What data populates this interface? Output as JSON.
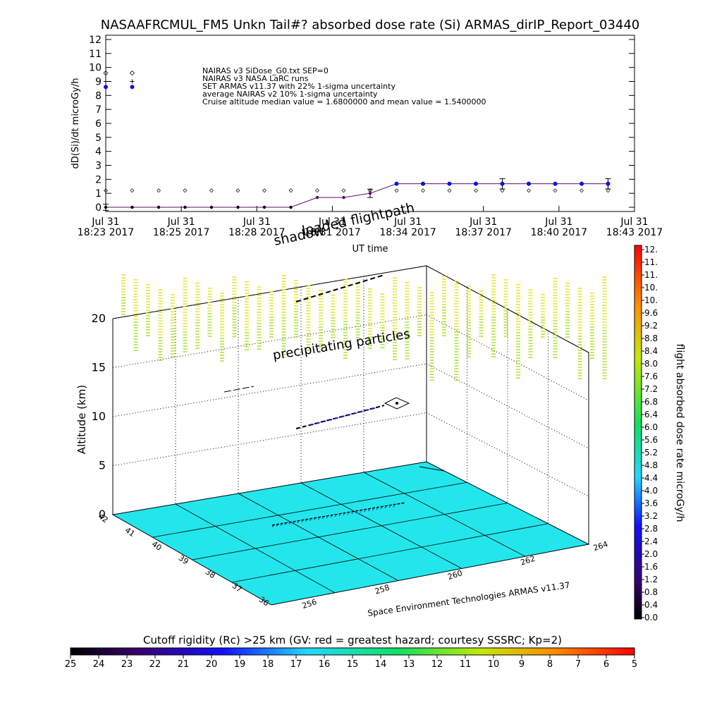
{
  "chart_data": [
    {
      "type": "scatter",
      "title": "NASAAFRCMUL_FM5 Unkn Tail#? absorbed dose rate (Si) ARMAS_dirIP_Report_03440",
      "ylabel": "dD(Si)/dt microGy/h",
      "xlabel": "UT time",
      "ylim": [
        0,
        12
      ],
      "yticks": [
        "0",
        "1",
        "2",
        "3",
        "4",
        "5",
        "6",
        "7",
        "8",
        "9",
        "10",
        "11",
        "12"
      ],
      "xticks": [
        {
          "l1": "Jul 31",
          "l2": "18:23 2017"
        },
        {
          "l1": "Jul 31",
          "l2": "18:25 2017"
        },
        {
          "l1": "Jul 31",
          "l2": "18:28 2017"
        },
        {
          "l1": "Jul 31",
          "l2": "18:31 2017"
        },
        {
          "l1": "Jul 31",
          "l2": "18:34 2017"
        },
        {
          "l1": "Jul 31",
          "l2": "18:37 2017"
        },
        {
          "l1": "Jul 31",
          "l2": "18:40 2017"
        },
        {
          "l1": "Jul 31",
          "l2": "18:43 2017"
        }
      ],
      "xlim_minutes": [
        0,
        20
      ],
      "legend": [
        "NAIRAS v3 SiDose_G0.txt SEP=0",
        "NAIRAS v3 NASA LaRC runs",
        "SET ARMAS v11.37 with 22% 1-sigma uncertainty",
        "average NAIRAS v2 10% 1-sigma uncertainty",
        "Cruise altitude median value = 1.6800000 and mean value = 1.5400000"
      ],
      "legend_placement": "top-left",
      "marker_key": [
        {
          "x": 0,
          "y": 9.6,
          "kind": "diamond"
        },
        {
          "x": 1,
          "y": 9.6,
          "kind": "diamond"
        },
        {
          "x": 0,
          "y": 9.0,
          "kind": "plus"
        },
        {
          "x": 1,
          "y": 9.0,
          "kind": "plus"
        },
        {
          "x": 0,
          "y": 8.6,
          "kind": "dot"
        },
        {
          "x": 1,
          "y": 8.6,
          "kind": "dot"
        }
      ],
      "series": [
        {
          "kind": "armas",
          "x": [
            0,
            1,
            2,
            3,
            4,
            5,
            6,
            7,
            8,
            9,
            10,
            11,
            12,
            13,
            14,
            15,
            16,
            17,
            18,
            19
          ],
          "y": [
            0,
            0,
            0,
            0,
            0,
            0,
            0,
            0,
            0.7,
            0.7,
            1.0,
            1.68,
            1.68,
            1.68,
            1.68,
            1.68,
            1.68,
            1.68,
            1.68,
            1.68
          ],
          "err": [
            0.22,
            0,
            0,
            0,
            0,
            0,
            0,
            0,
            0,
            0,
            0.3,
            0,
            0,
            0,
            0,
            0.37,
            0,
            0,
            0,
            0.37
          ]
        },
        {
          "kind": "nairas",
          "x": [
            0,
            1,
            2,
            3,
            4,
            5,
            6,
            7,
            8,
            9,
            10,
            11,
            12,
            13,
            14,
            15,
            16,
            17,
            18,
            19
          ],
          "y": [
            1.2,
            1.2,
            1.2,
            1.2,
            1.2,
            1.2,
            1.2,
            1.2,
            1.2,
            1.2,
            1.2,
            1.2,
            1.2,
            1.2,
            1.2,
            1.2,
            1.2,
            1.2,
            1.2,
            1.2
          ]
        }
      ]
    },
    {
      "type": "scatter",
      "subtype": "3d-flight-path",
      "zlabel": "Altitude (km)",
      "zticks": [
        "0",
        "5",
        "10",
        "15",
        "20"
      ],
      "ylabel": "",
      "yticks_lat": [
        "42",
        "41",
        "40",
        "39",
        "38",
        "37",
        "36"
      ],
      "xticks_lon": [
        "256",
        "258",
        "260",
        "262",
        "264"
      ],
      "annotations": [
        "loaded flightpath",
        "shadow",
        "precipitating particles"
      ],
      "credit": "Space Environment Technologies ARMAS v11.37",
      "colorbar": {
        "label": "flight absorbed dose rate microGy/h",
        "ticks": [
          "12.",
          "11.",
          "11.",
          "10.",
          "10.",
          "9.6",
          "9.2",
          "8.8",
          "8.4",
          "8.0",
          "7.6",
          "7.2",
          "6.8",
          "6.4",
          "6.0",
          "5.6",
          "5.2",
          "4.8",
          "4.4",
          "4.0",
          "3.6",
          "3.2",
          "2.8",
          "2.4",
          "2.0",
          "1.6",
          "1.2",
          "0.8",
          "0.4",
          "0.0"
        ],
        "range": [
          0,
          12
        ]
      },
      "path_dose": [
        1.68,
        1.68,
        1.68,
        1.68,
        1.68,
        1.68,
        1.68,
        1.68,
        0.7,
        0.7,
        0
      ]
    },
    {
      "type": "heatmap",
      "title": "Cutoff rigidity (Rc) >25 km (GV: red = greatest hazard; courtesy SSSRC; Kp=2)",
      "ticks": [
        "25",
        "24",
        "23",
        "22",
        "21",
        "20",
        "19",
        "18",
        "17",
        "16",
        "15",
        "14",
        "13",
        "12",
        "11",
        "10",
        "9",
        "8",
        "7",
        "6",
        "5"
      ],
      "range": [
        25,
        5
      ]
    }
  ],
  "colors": {
    "armas_line": "#5a1060",
    "armas_dot": "#1010e0",
    "floor": "#22e6ec",
    "curtain": "#d8e000"
  }
}
